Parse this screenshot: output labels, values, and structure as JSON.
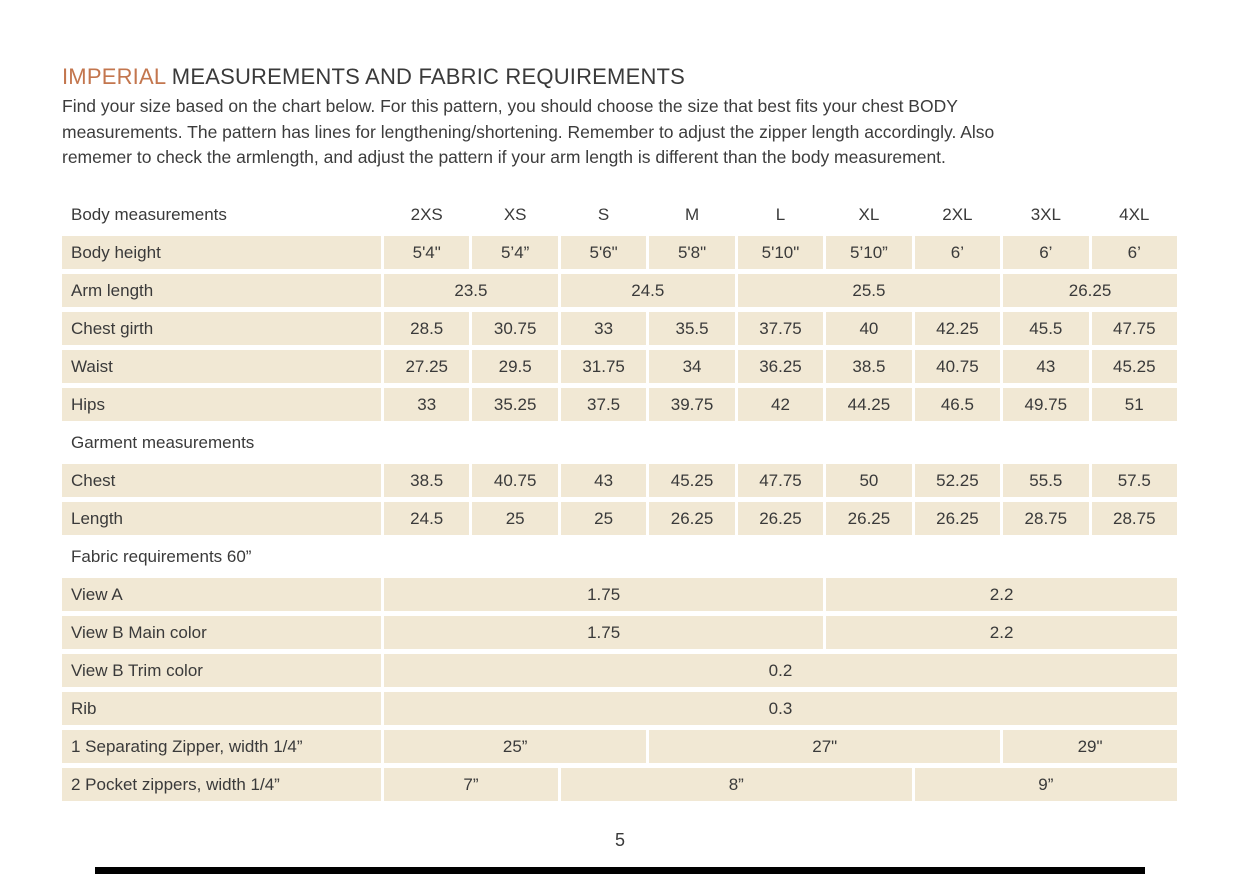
{
  "page": {
    "title": {
      "highlight": "IMPERIAL",
      "rest": " MEASUREMENTS AND FABRIC REQUIREMENTS"
    },
    "intro_lines": [
      "Find your size based on the chart below. For this pattern, you should choose the size that best fits your chest BODY",
      "measurements. The pattern has lines for lengthening/shortening. Remember to adjust the zipper length accordingly. Also",
      "rememer to check the armlength, and adjust the pattern if your arm length is different than the body measurement."
    ],
    "page_number": "5"
  },
  "colors": {
    "accent": "#c3764e",
    "cell_background": "#f1e8d4",
    "text": "#3a3a3a",
    "footer_rule": "#000000"
  },
  "table": {
    "header": {
      "label": "Body measurements",
      "sizes": [
        "2XS",
        "XS",
        "S",
        "M",
        "L",
        "XL",
        "2XL",
        "3XL",
        "4XL"
      ]
    },
    "sections": {
      "garment": "Garment measurements",
      "fabric": "Fabric requirements 60”"
    },
    "rows": [
      {
        "label": "Body height",
        "cells": [
          "5'4\"",
          "5’4”",
          "5'6\"",
          "5'8\"",
          "5'10\"",
          "5’10”",
          "6’",
          "6’",
          "6’"
        ]
      },
      {
        "label": "Arm length",
        "cells": [
          "23.5",
          "24.5",
          "25.5",
          "26.25"
        ]
      },
      {
        "label": "Chest girth",
        "cells": [
          "28.5",
          "30.75",
          "33",
          "35.5",
          "37.75",
          "40",
          "42.25",
          "45.5",
          "47.75"
        ]
      },
      {
        "label": "Waist",
        "cells": [
          "27.25",
          "29.5",
          "31.75",
          "34",
          "36.25",
          "38.5",
          "40.75",
          "43",
          "45.25"
        ]
      },
      {
        "label": "Hips",
        "cells": [
          "33",
          "35.25",
          "37.5",
          "39.75",
          "42",
          "44.25",
          "46.5",
          "49.75",
          "51"
        ]
      },
      {
        "label": "Chest",
        "cells": [
          "38.5",
          "40.75",
          "43",
          "45.25",
          "47.75",
          "50",
          "52.25",
          "55.5",
          "57.5"
        ]
      },
      {
        "label": "Length",
        "cells": [
          "24.5",
          "25",
          "25",
          "26.25",
          "26.25",
          "26.25",
          "26.25",
          "28.75",
          "28.75"
        ]
      },
      {
        "label": "View A",
        "cells": [
          "1.75",
          "2.2"
        ]
      },
      {
        "label": "View B Main color",
        "cells": [
          "1.75",
          "2.2"
        ]
      },
      {
        "label": "View B Trim color",
        "cells": [
          "0.2"
        ]
      },
      {
        "label": "Rib",
        "cells": [
          "0.3"
        ]
      },
      {
        "label": "1 Separating Zipper, width 1/4”",
        "cells": [
          "25”",
          "27\"",
          "29\""
        ]
      },
      {
        "label": "2 Pocket zippers, width 1/4”",
        "cells": [
          "7”",
          "8”",
          "9”"
        ]
      }
    ]
  }
}
